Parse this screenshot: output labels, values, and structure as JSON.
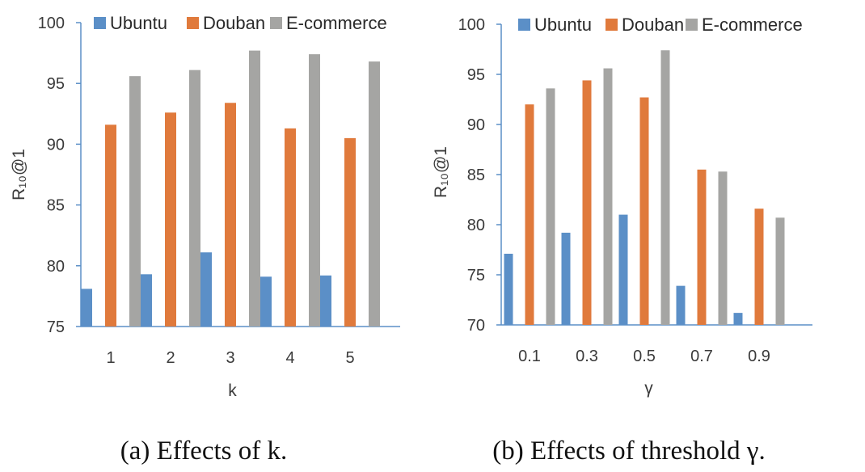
{
  "colors": {
    "ubuntu": "#5b8fc7",
    "douban": "#e07a3c",
    "ecommerce": "#a5a5a3",
    "axis": "#5b8fc7"
  },
  "captions": [
    "(a)  Effects of k.",
    "(b)  Effects of threshold γ."
  ],
  "chart_data": [
    {
      "type": "bar",
      "ylabel": "R₁₀@1",
      "xlabel": "k",
      "ylim": [
        75,
        100
      ],
      "yticks": [
        "75",
        "80",
        "85",
        "90",
        "95",
        "100"
      ],
      "categories": [
        "1",
        "2",
        "3",
        "4",
        "5"
      ],
      "legend_position": "top",
      "grid": false,
      "series": [
        {
          "name": "Ubuntu",
          "values": [
            78.1,
            79.3,
            81.1,
            79.1,
            79.2
          ]
        },
        {
          "name": "Douban",
          "values": [
            91.6,
            92.6,
            93.4,
            91.3,
            90.5
          ]
        },
        {
          "name": "E-commerce",
          "values": [
            95.6,
            96.1,
            97.7,
            97.4,
            96.8
          ]
        }
      ]
    },
    {
      "type": "bar",
      "ylabel": "R₁₀@1",
      "xlabel": "γ",
      "ylim": [
        70,
        100
      ],
      "yticks": [
        "70",
        "75",
        "80",
        "85",
        "90",
        "95",
        "100"
      ],
      "categories": [
        "0.1",
        "0.3",
        "0.5",
        "0.7",
        "0.9"
      ],
      "legend_position": "top",
      "grid": false,
      "series": [
        {
          "name": "Ubuntu",
          "values": [
            77.1,
            79.2,
            81.0,
            73.9,
            71.2
          ]
        },
        {
          "name": "Douban",
          "values": [
            92.0,
            94.4,
            92.7,
            85.5,
            81.6
          ]
        },
        {
          "name": "E-commerce",
          "values": [
            93.6,
            95.6,
            97.4,
            85.3,
            80.7
          ]
        }
      ]
    }
  ]
}
